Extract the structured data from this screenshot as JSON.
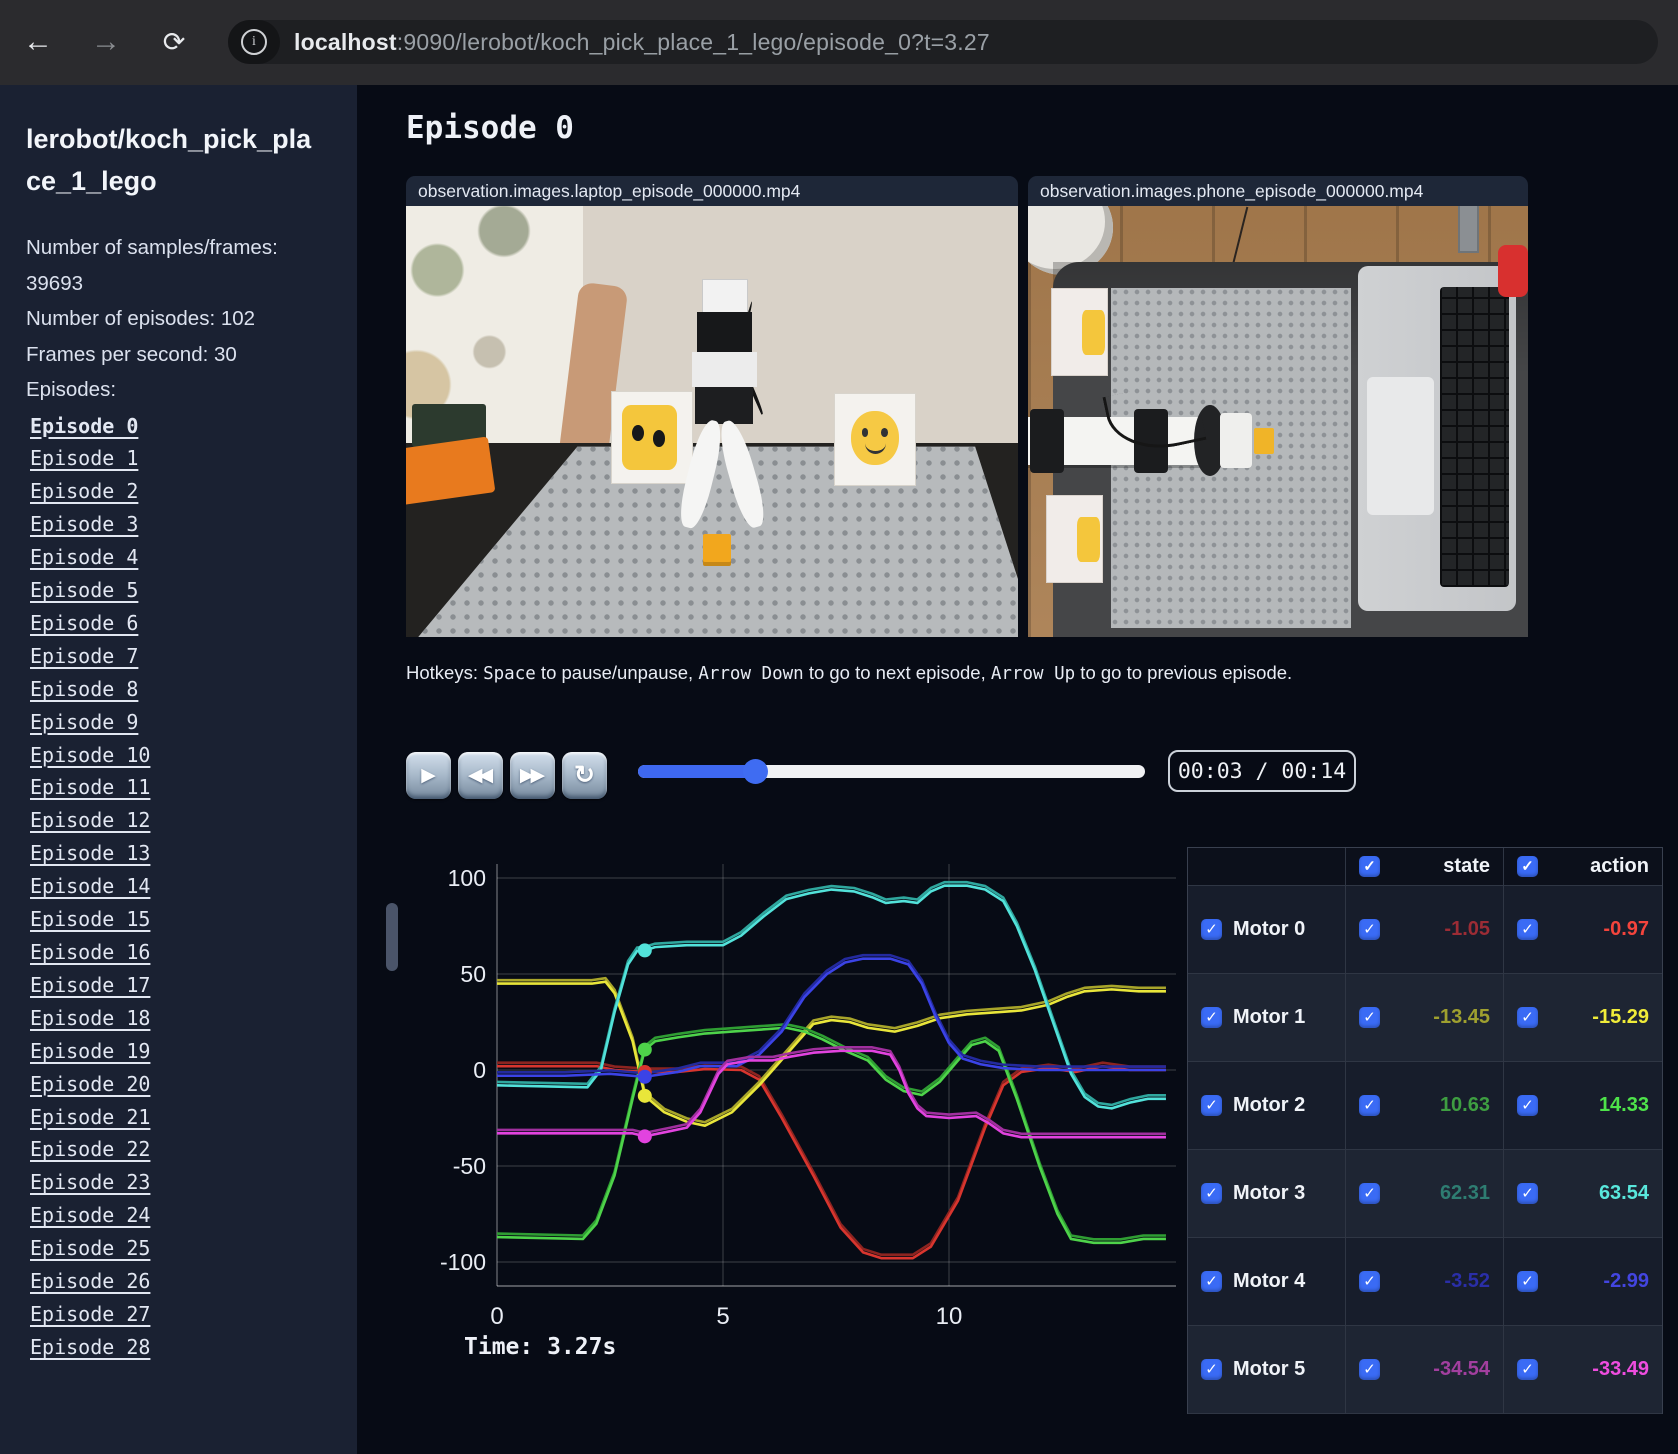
{
  "browser": {
    "host": "localhost",
    "url_rest": ":9090/lerobot/koch_pick_place_1_lego/episode_0?t=3.27",
    "back_icon": "←",
    "forward_icon": "→",
    "reload_icon": "⟳",
    "info_icon": "i"
  },
  "sidebar": {
    "title": "lerobot/koch_pick_place_1_lego",
    "stats": [
      "Number of samples/frames: 39693",
      "Number of episodes: 102",
      "Frames per second: 30"
    ],
    "episodes_label": "Episodes:",
    "active_episode": "Episode 0",
    "episodes": [
      "Episode 0",
      "Episode 1",
      "Episode 2",
      "Episode 3",
      "Episode 4",
      "Episode 5",
      "Episode 6",
      "Episode 7",
      "Episode 8",
      "Episode 9",
      "Episode 10",
      "Episode 11",
      "Episode 12",
      "Episode 13",
      "Episode 14",
      "Episode 15",
      "Episode 16",
      "Episode 17",
      "Episode 18",
      "Episode 19",
      "Episode 20",
      "Episode 21",
      "Episode 22",
      "Episode 23",
      "Episode 24",
      "Episode 25",
      "Episode 26",
      "Episode 27",
      "Episode 28"
    ]
  },
  "main": {
    "title": "Episode 0",
    "videos": [
      {
        "label": "observation.images.laptop_episode_000000.mp4"
      },
      {
        "label": "observation.images.phone_episode_000000.mp4"
      }
    ],
    "hotkeys_segments": [
      {
        "text": "Hotkeys: ",
        "mono": false
      },
      {
        "text": "Space",
        "mono": true
      },
      {
        "text": " to pause/unpause, ",
        "mono": false
      },
      {
        "text": "Arrow Down",
        "mono": true
      },
      {
        "text": " to go to next episode, ",
        "mono": false
      },
      {
        "text": "Arrow Up",
        "mono": true
      },
      {
        "text": " to go to previous episode.",
        "mono": false
      }
    ],
    "controls": {
      "play_icon": "▶",
      "rewind_icon": "◀◀",
      "forward_icon": "▶▶",
      "loop_icon": "↻",
      "time_display": "00:03 / 00:14",
      "progress_pct": 23
    },
    "time_label": "Time: 3.27s"
  },
  "table": {
    "check_glyph": "✓",
    "headers": [
      "state",
      "action"
    ],
    "rows": [
      {
        "name": "Motor 0",
        "state": "-1.05",
        "action": "-0.97",
        "state_color": "#9c2c35",
        "action_color": "#f4443c"
      },
      {
        "name": "Motor 1",
        "state": "-13.45",
        "action": "-15.29",
        "state_color": "#9fa02f",
        "action_color": "#f0ec39"
      },
      {
        "name": "Motor 2",
        "state": "10.63",
        "action": "14.33",
        "state_color": "#3e9e41",
        "action_color": "#4ee34a"
      },
      {
        "name": "Motor 3",
        "state": "62.31",
        "action": "63.54",
        "state_color": "#2e7d72",
        "action_color": "#59e7dc"
      },
      {
        "name": "Motor 4",
        "state": "-3.52",
        "action": "-2.99",
        "state_color": "#2a2ea8",
        "action_color": "#4345e0"
      },
      {
        "name": "Motor 5",
        "state": "-34.54",
        "action": "-33.49",
        "state_color": "#a23f9f",
        "action_color": "#ef4ddf"
      }
    ]
  },
  "chart_data": {
    "type": "line",
    "x_ticks": [
      0,
      5,
      10
    ],
    "y_ticks": [
      100,
      50,
      0,
      -50,
      -100
    ],
    "xlim": [
      0,
      14.8
    ],
    "ylim": [
      -110,
      105
    ],
    "grid": true,
    "cursor_time": 3.27,
    "cursor_values": [
      -1.05,
      -13.45,
      10.63,
      62.31,
      -3.52,
      -34.54
    ],
    "series": [
      {
        "name": "Motor 0",
        "action_color": "#d8352e",
        "state_color": "#8c2420",
        "points": [
          [
            0,
            2
          ],
          [
            2.2,
            2
          ],
          [
            2.6,
            0
          ],
          [
            3.27,
            -1.05
          ],
          [
            4,
            -1
          ],
          [
            4.6,
            0.5
          ],
          [
            5.4,
            0
          ],
          [
            5.8,
            -5
          ],
          [
            6.3,
            -25
          ],
          [
            7,
            -55
          ],
          [
            7.6,
            -82
          ],
          [
            8.1,
            -95
          ],
          [
            8.5,
            -98
          ],
          [
            9.2,
            -98
          ],
          [
            9.6,
            -92
          ],
          [
            10.2,
            -68
          ],
          [
            10.8,
            -30
          ],
          [
            11.2,
            -8
          ],
          [
            11.6,
            -1
          ],
          [
            12.2,
            1
          ],
          [
            12.8,
            -1
          ],
          [
            13.4,
            2
          ],
          [
            14,
            0
          ],
          [
            14.8,
            0
          ]
        ]
      },
      {
        "name": "Motor 1",
        "action_color": "#e9e63a",
        "state_color": "#a8a52a",
        "points": [
          [
            0,
            45
          ],
          [
            2.1,
            45
          ],
          [
            2.4,
            46
          ],
          [
            2.6,
            40
          ],
          [
            3,
            15
          ],
          [
            3.27,
            -13.45
          ],
          [
            3.7,
            -22
          ],
          [
            4.2,
            -27
          ],
          [
            4.6,
            -29
          ],
          [
            5.2,
            -22
          ],
          [
            5.8,
            -8
          ],
          [
            6.4,
            8
          ],
          [
            7,
            24
          ],
          [
            7.4,
            26
          ],
          [
            7.8,
            25
          ],
          [
            8.2,
            22
          ],
          [
            8.8,
            20
          ],
          [
            9.3,
            23
          ],
          [
            9.8,
            27
          ],
          [
            10.4,
            29
          ],
          [
            11,
            30
          ],
          [
            11.6,
            31
          ],
          [
            12.2,
            34
          ],
          [
            12.6,
            38
          ],
          [
            13,
            41
          ],
          [
            13.6,
            42
          ],
          [
            14.2,
            41
          ],
          [
            14.8,
            41
          ]
        ]
      },
      {
        "name": "Motor 2",
        "action_color": "#4ed34a",
        "state_color": "#2f9e33",
        "points": [
          [
            0,
            -87
          ],
          [
            1.9,
            -88
          ],
          [
            2.2,
            -80
          ],
          [
            2.6,
            -55
          ],
          [
            3,
            -15
          ],
          [
            3.27,
            10.63
          ],
          [
            3.5,
            15
          ],
          [
            4,
            17
          ],
          [
            4.6,
            19
          ],
          [
            5.2,
            20
          ],
          [
            5.8,
            21
          ],
          [
            6.4,
            22
          ],
          [
            6.8,
            20
          ],
          [
            7.2,
            16
          ],
          [
            7.7,
            10
          ],
          [
            8.2,
            5
          ],
          [
            8.6,
            -5
          ],
          [
            9,
            -11
          ],
          [
            9.4,
            -13
          ],
          [
            9.8,
            -6
          ],
          [
            10.2,
            5
          ],
          [
            10.5,
            13
          ],
          [
            10.8,
            15
          ],
          [
            11.1,
            10
          ],
          [
            11.5,
            -15
          ],
          [
            12,
            -50
          ],
          [
            12.4,
            -75
          ],
          [
            12.7,
            -88
          ],
          [
            13.2,
            -90
          ],
          [
            13.8,
            -90
          ],
          [
            14.3,
            -88
          ],
          [
            14.8,
            -88
          ]
        ]
      },
      {
        "name": "Motor 3",
        "action_color": "#52e2da",
        "state_color": "#2fa79e",
        "points": [
          [
            0,
            -8
          ],
          [
            2,
            -9
          ],
          [
            2.3,
            0
          ],
          [
            2.6,
            30
          ],
          [
            2.9,
            55
          ],
          [
            3.1,
            62
          ],
          [
            3.27,
            62.31
          ],
          [
            3.5,
            64
          ],
          [
            4.2,
            65
          ],
          [
            5,
            65
          ],
          [
            5.4,
            70
          ],
          [
            5.9,
            80
          ],
          [
            6.4,
            89
          ],
          [
            6.9,
            92
          ],
          [
            7.4,
            94
          ],
          [
            7.9,
            93
          ],
          [
            8.3,
            90
          ],
          [
            8.6,
            87
          ],
          [
            9,
            88
          ],
          [
            9.3,
            87
          ],
          [
            9.6,
            93
          ],
          [
            9.9,
            96
          ],
          [
            10.4,
            96
          ],
          [
            10.8,
            94
          ],
          [
            11.2,
            88
          ],
          [
            11.5,
            75
          ],
          [
            11.9,
            52
          ],
          [
            12.3,
            25
          ],
          [
            12.7,
            -2
          ],
          [
            13,
            -14
          ],
          [
            13.3,
            -19
          ],
          [
            13.6,
            -20
          ],
          [
            14,
            -17
          ],
          [
            14.4,
            -15
          ],
          [
            14.8,
            -15
          ]
        ]
      },
      {
        "name": "Motor 4",
        "action_color": "#3b43e6",
        "state_color": "#232a9e",
        "points": [
          [
            0,
            -3
          ],
          [
            1.5,
            -3
          ],
          [
            2.5,
            -2
          ],
          [
            3.27,
            -3.52
          ],
          [
            4,
            -1
          ],
          [
            4.5,
            2
          ],
          [
            5,
            2
          ],
          [
            5.3,
            2
          ],
          [
            5.8,
            8
          ],
          [
            6.3,
            20
          ],
          [
            6.8,
            38
          ],
          [
            7.3,
            50
          ],
          [
            7.7,
            56
          ],
          [
            8.1,
            58
          ],
          [
            8.7,
            58
          ],
          [
            9.1,
            55
          ],
          [
            9.4,
            45
          ],
          [
            9.7,
            28
          ],
          [
            10,
            14
          ],
          [
            10.3,
            6
          ],
          [
            10.7,
            3
          ],
          [
            11.2,
            1
          ],
          [
            12,
            0
          ],
          [
            14.8,
            0
          ]
        ]
      },
      {
        "name": "Motor 5",
        "action_color": "#e243df",
        "state_color": "#a02f9e",
        "points": [
          [
            0,
            -33
          ],
          [
            3,
            -33
          ],
          [
            3.27,
            -34.54
          ],
          [
            3.8,
            -32
          ],
          [
            4.2,
            -30
          ],
          [
            4.5,
            -22
          ],
          [
            4.7,
            -12
          ],
          [
            4.9,
            -2
          ],
          [
            5.1,
            3
          ],
          [
            5.6,
            5
          ],
          [
            6.1,
            5
          ],
          [
            6.5,
            7
          ],
          [
            7,
            9
          ],
          [
            7.6,
            10
          ],
          [
            8.3,
            10
          ],
          [
            8.7,
            8
          ],
          [
            8.9,
            0
          ],
          [
            9.1,
            -12
          ],
          [
            9.3,
            -20
          ],
          [
            9.5,
            -24
          ],
          [
            10,
            -25
          ],
          [
            10.6,
            -24
          ],
          [
            10.9,
            -28
          ],
          [
            11.2,
            -33
          ],
          [
            11.6,
            -35
          ],
          [
            12.2,
            -35
          ],
          [
            14.8,
            -35
          ]
        ]
      }
    ]
  }
}
